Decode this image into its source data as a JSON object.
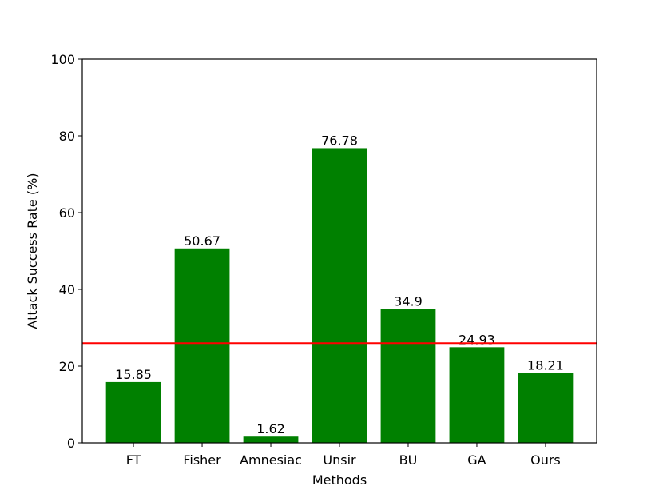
{
  "chart_data": {
    "type": "bar",
    "xlabel": "Methods",
    "ylabel": "Attack Success Rate (%)",
    "categories": [
      "FT",
      "Fisher",
      "Amnesiac",
      "Unsir",
      "BU",
      "GA",
      "Ours"
    ],
    "values": [
      15.85,
      50.67,
      1.62,
      76.78,
      34.9,
      24.93,
      18.21
    ],
    "color": "#008000",
    "ylim": [
      0,
      100
    ],
    "yticks": [
      0,
      20,
      40,
      60,
      80,
      100
    ],
    "hline": {
      "value": 26,
      "color": "#ff0000"
    }
  }
}
